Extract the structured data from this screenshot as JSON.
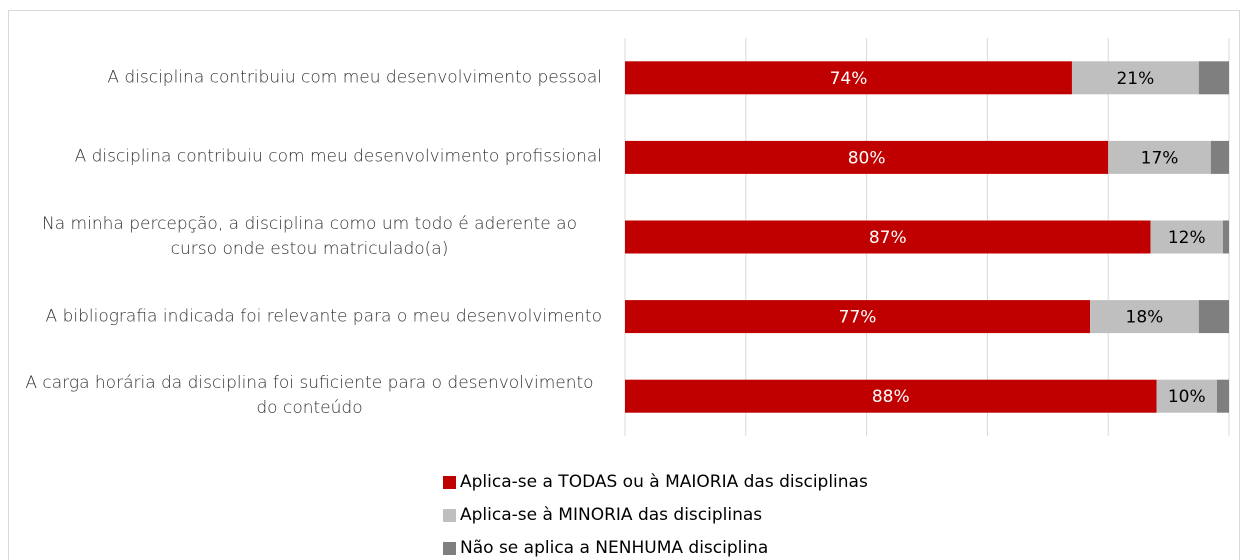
{
  "chart_data": {
    "type": "stacked_barh",
    "categories": [
      "A disciplina contribuiu com meu desenvolvimento pessoal",
      "A disciplina contribuiu com meu desenvolvimento profissional",
      "Na minha percepção, a disciplina como um todo é aderente ao curso onde estou matriculado(a)",
      "A bibliografia indicada foi relevante para o meu desenvolvimento",
      "A carga horária da disciplina foi suficiente para o desenvolvimento do conteúdo"
    ],
    "series": [
      {
        "name": "Aplica-se a TODAS ou à MAIORIA das disciplinas",
        "color": "#c00000",
        "label_color": "#ffffff",
        "values": [
          74,
          80,
          87,
          77,
          88
        ],
        "value_labels": [
          "74%",
          "80%",
          "87%",
          "77%",
          "88%"
        ]
      },
      {
        "name": "Aplica-se à MINORIA das disciplinas",
        "color": "#bfbfbf",
        "label_color": "#000000",
        "values": [
          21,
          17,
          12,
          18,
          10
        ],
        "value_labels": [
          "21%",
          "17%",
          "12%",
          "18%",
          "10%"
        ]
      },
      {
        "name": "Não se aplica a NENHUMA disciplina",
        "color": "#7f7f7f",
        "values": [
          5,
          3,
          1,
          5,
          2
        ]
      }
    ],
    "xlim": [
      0,
      100
    ],
    "xticks": [
      0,
      20,
      40,
      60,
      80,
      100
    ],
    "grid": true,
    "legend": "bottom"
  }
}
